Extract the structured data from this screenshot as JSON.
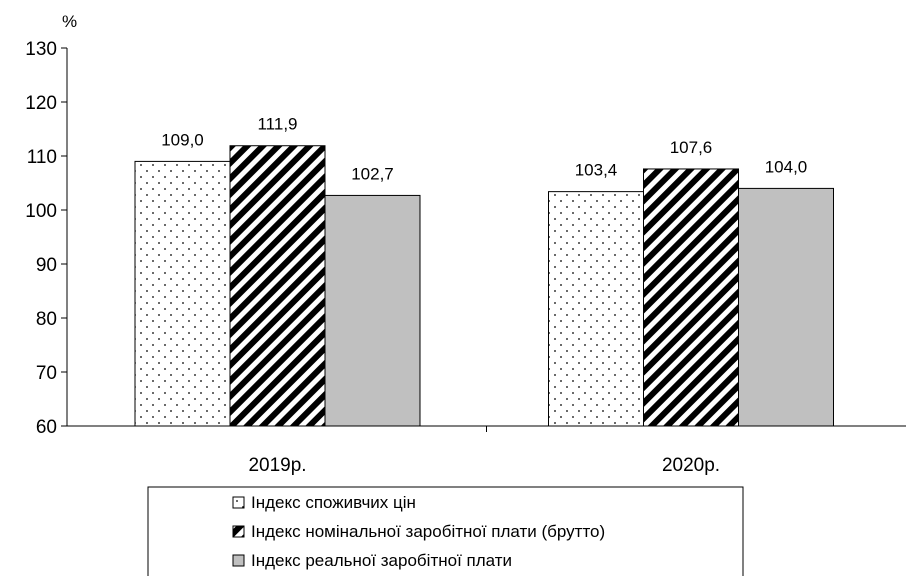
{
  "chart_data": {
    "type": "bar",
    "ylabel": "%",
    "ylim": [
      60,
      130
    ],
    "yticks": [
      60,
      70,
      80,
      90,
      100,
      110,
      120,
      130
    ],
    "categories": [
      "2019р.",
      "2020р."
    ],
    "series": [
      {
        "name": "Індекс споживчих цін",
        "values": [
          109.0,
          103.4
        ],
        "labels": [
          "109,0",
          "103,4"
        ],
        "pattern": "dots",
        "color": "#ffffff"
      },
      {
        "name": "Індекс номінальної заробітної плати (брутто)",
        "values": [
          111.9,
          107.6
        ],
        "labels": [
          "111,9",
          "107,6"
        ],
        "pattern": "diagonal-stripes",
        "color": "#000000"
      },
      {
        "name": "Індекс реальної заробітної плати",
        "values": [
          102.7,
          104.0
        ],
        "labels": [
          "102,7",
          "104,0"
        ],
        "pattern": "solid",
        "color": "#c0c0c0"
      }
    ],
    "grid": false,
    "legend": "bottom"
  }
}
